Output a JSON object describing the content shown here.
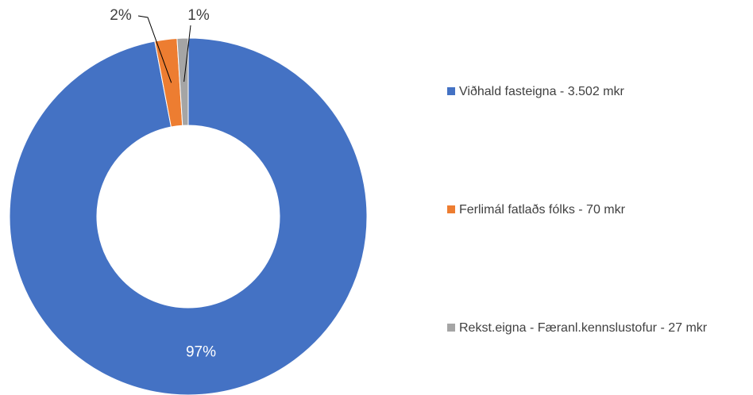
{
  "chart_data": {
    "type": "donut",
    "categories": [
      "Viðhald fasteigna - 3.502 mkr",
      "Ferlimál fatlaðs fólks - 70 mkr",
      "Rekst.eigna - Færanl.kennslustofur - 27 mkr"
    ],
    "values": [
      97,
      2,
      1
    ],
    "value_labels": [
      "97%",
      "2%",
      "1%"
    ],
    "colors": [
      "#4472c4",
      "#ed7d31",
      "#a5a5a5"
    ],
    "legend": "right"
  }
}
